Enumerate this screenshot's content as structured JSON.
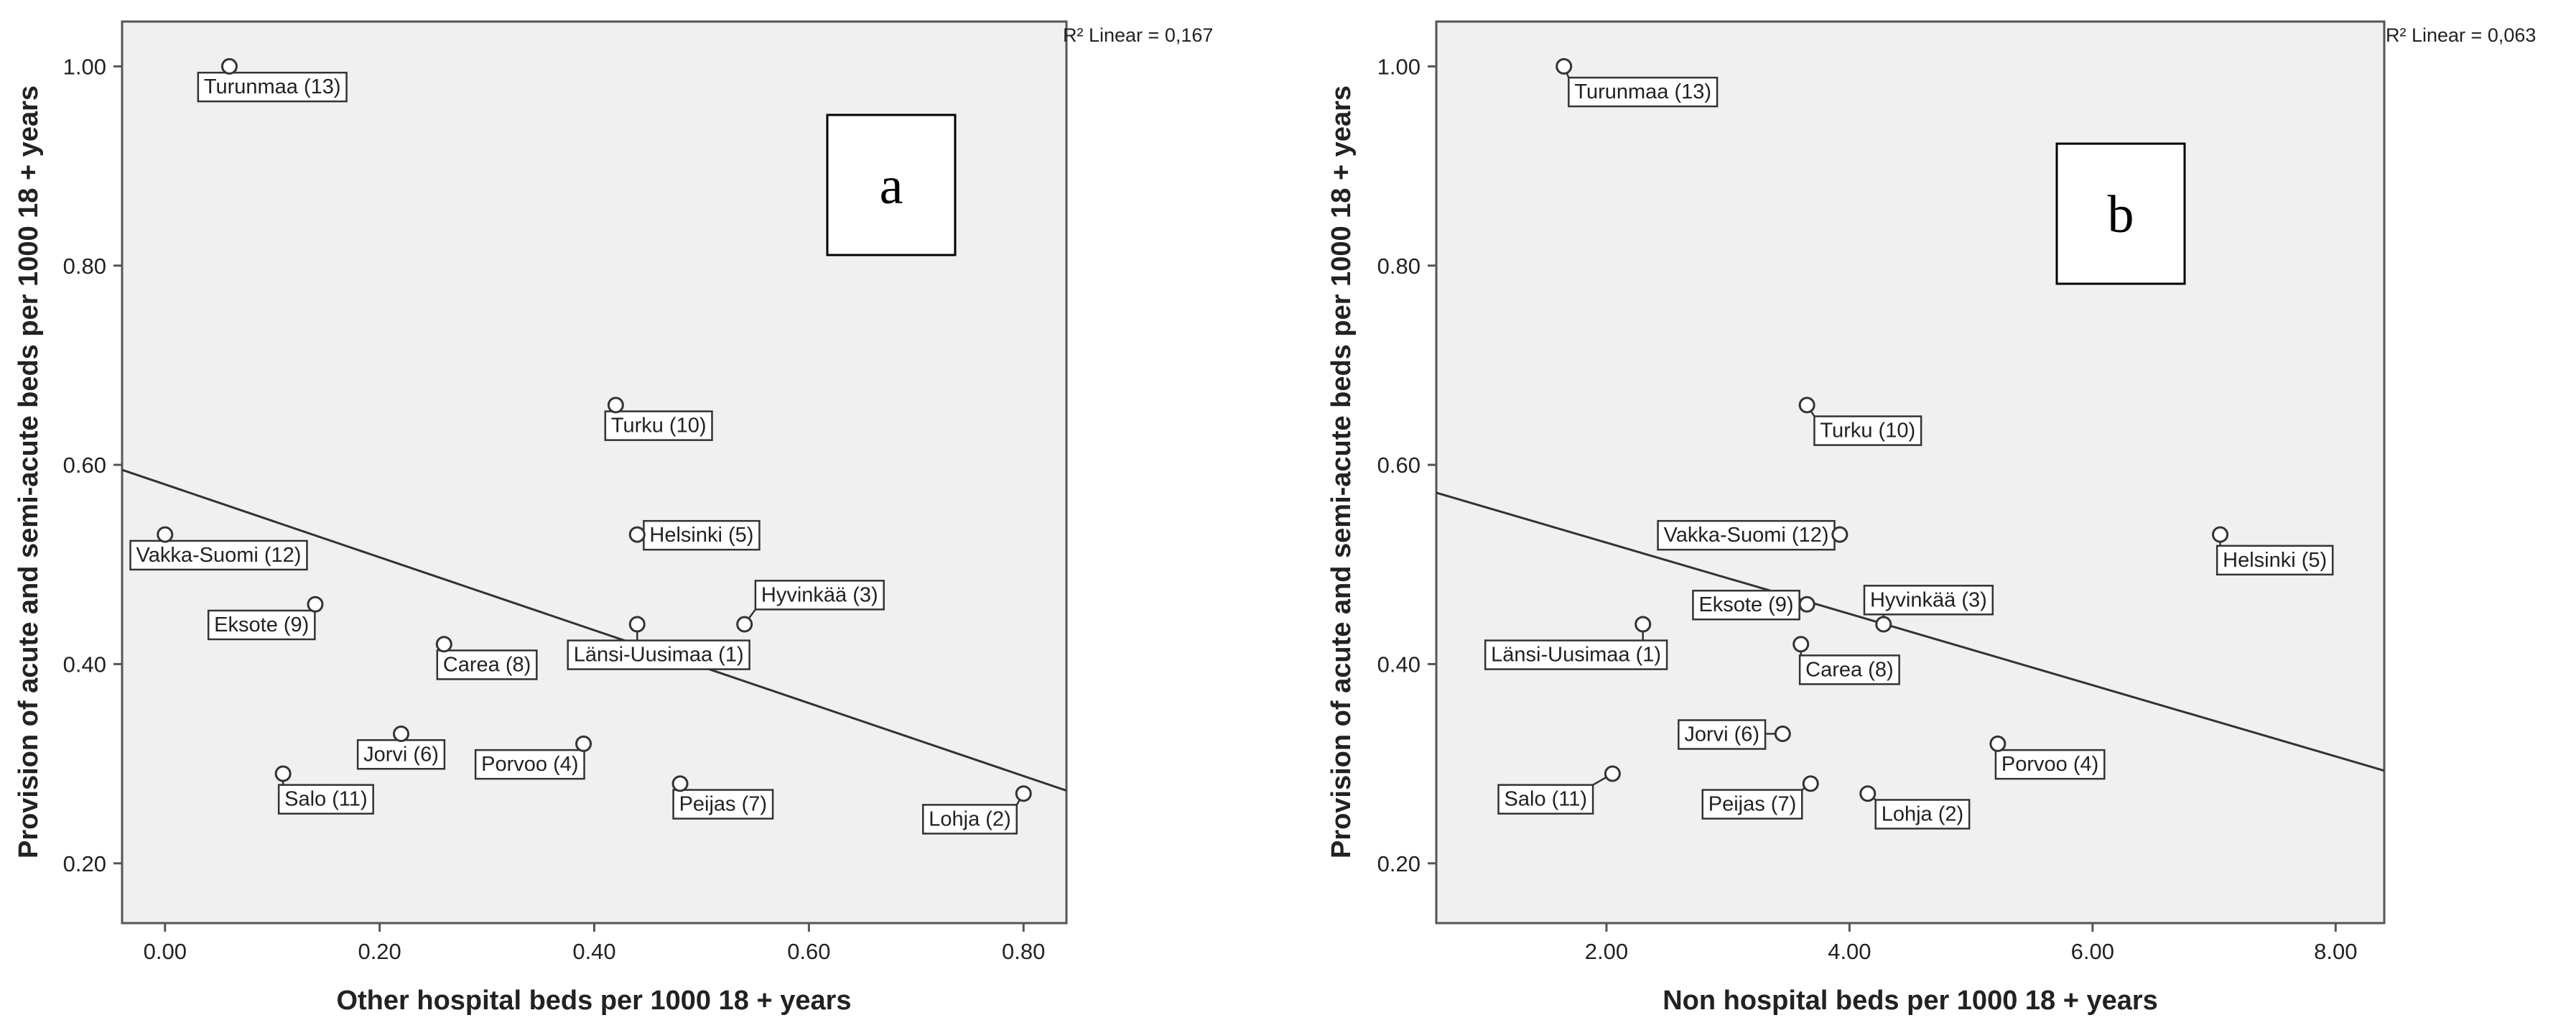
{
  "chart_data": [
    {
      "type": "scatter",
      "panel_label": "a",
      "xlabel": "Other hospital beds per 1000 18 + years",
      "ylabel": "Provision of acute and semi-acute beds per 1000 18 + years",
      "fit_label": "R² Linear = 0,167",
      "xlim": [
        -0.04,
        0.84
      ],
      "ylim": [
        0.14,
        1.045
      ],
      "x_ticks": [
        0.0,
        0.2,
        0.4,
        0.6,
        0.8
      ],
      "x_tick_labels": [
        "0.00",
        "0.20",
        "0.40",
        "0.60",
        "0.80"
      ],
      "y_ticks": [
        0.2,
        0.4,
        0.6,
        0.8,
        1.0
      ],
      "y_tick_labels": [
        "0.20",
        "0.40",
        "0.60",
        "0.80",
        "1.00"
      ],
      "fit_line": {
        "x": [
          -0.04,
          0.84
        ],
        "y": [
          0.595,
          0.273
        ]
      },
      "points": [
        {
          "label": "Turunmaa (13)",
          "x": 0.06,
          "y": 1.0,
          "lx": 0.1,
          "ly": 0.98
        },
        {
          "label": "Turku (10)",
          "x": 0.42,
          "y": 0.66,
          "lx": 0.46,
          "ly": 0.64
        },
        {
          "label": "Helsinki (5)",
          "x": 0.44,
          "y": 0.53,
          "lx": 0.5,
          "ly": 0.53
        },
        {
          "label": "Vakka-Suomi (12)",
          "x": 0.0,
          "y": 0.53,
          "lx": 0.05,
          "ly": 0.51
        },
        {
          "label": "Eksote (9)",
          "x": 0.14,
          "y": 0.46,
          "lx": 0.09,
          "ly": 0.44
        },
        {
          "label": "Hyvinkää (3)",
          "x": 0.54,
          "y": 0.44,
          "lx": 0.61,
          "ly": 0.47
        },
        {
          "label": "Länsi-Uusimaa (1)",
          "x": 0.44,
          "y": 0.44,
          "lx": 0.46,
          "ly": 0.41
        },
        {
          "label": "Carea (8)",
          "x": 0.26,
          "y": 0.42,
          "lx": 0.3,
          "ly": 0.4
        },
        {
          "label": "Jorvi (6)",
          "x": 0.22,
          "y": 0.33,
          "lx": 0.22,
          "ly": 0.31
        },
        {
          "label": "Porvoo (4)",
          "x": 0.39,
          "y": 0.32,
          "lx": 0.34,
          "ly": 0.3
        },
        {
          "label": "Salo (11)",
          "x": 0.11,
          "y": 0.29,
          "lx": 0.15,
          "ly": 0.265
        },
        {
          "label": "Peijas (7)",
          "x": 0.48,
          "y": 0.28,
          "lx": 0.52,
          "ly": 0.26
        },
        {
          "label": "Lohja (2)",
          "x": 0.8,
          "y": 0.27,
          "lx": 0.75,
          "ly": 0.245
        }
      ]
    },
    {
      "type": "scatter",
      "panel_label": "b",
      "xlabel": "Non hospital beds per 1000 18 + years",
      "ylabel": "Provision of acute and semi-acute beds per 1000 18 + years",
      "fit_label": "R² Linear = 0,063",
      "xlim": [
        0.6,
        8.4
      ],
      "ylim": [
        0.14,
        1.045
      ],
      "x_ticks": [
        2.0,
        4.0,
        6.0,
        8.0
      ],
      "x_tick_labels": [
        "2.00",
        "4.00",
        "6.00",
        "8.00"
      ],
      "y_ticks": [
        0.2,
        0.4,
        0.6,
        0.8,
        1.0
      ],
      "y_tick_labels": [
        "0.20",
        "0.40",
        "0.60",
        "0.80",
        "1.00"
      ],
      "fit_line": {
        "x": [
          0.6,
          8.4
        ],
        "y": [
          0.572,
          0.293
        ]
      },
      "points": [
        {
          "label": "Turunmaa (13)",
          "x": 1.65,
          "y": 1.0,
          "lx": 2.3,
          "ly": 0.975
        },
        {
          "label": "Turku (10)",
          "x": 3.65,
          "y": 0.66,
          "lx": 4.15,
          "ly": 0.635
        },
        {
          "label": "Vakka-Suomi (12)",
          "x": 3.92,
          "y": 0.53,
          "lx": 3.15,
          "ly": 0.53
        },
        {
          "label": "Helsinki (5)",
          "x": 7.05,
          "y": 0.53,
          "lx": 7.5,
          "ly": 0.505
        },
        {
          "label": "Eksote (9)",
          "x": 3.65,
          "y": 0.46,
          "lx": 3.15,
          "ly": 0.46
        },
        {
          "label": "Hyvinkää (3)",
          "x": 4.28,
          "y": 0.44,
          "lx": 4.65,
          "ly": 0.465
        },
        {
          "label": "Länsi-Uusimaa (1)",
          "x": 2.3,
          "y": 0.44,
          "lx": 1.75,
          "ly": 0.41
        },
        {
          "label": "Carea (8)",
          "x": 3.6,
          "y": 0.42,
          "lx": 4.0,
          "ly": 0.395
        },
        {
          "label": "Jorvi (6)",
          "x": 3.45,
          "y": 0.33,
          "lx": 2.95,
          "ly": 0.33
        },
        {
          "label": "Porvoo (4)",
          "x": 5.22,
          "y": 0.32,
          "lx": 5.65,
          "ly": 0.3
        },
        {
          "label": "Salo (11)",
          "x": 2.05,
          "y": 0.29,
          "lx": 1.5,
          "ly": 0.265
        },
        {
          "label": "Peijas (7)",
          "x": 3.68,
          "y": 0.28,
          "lx": 3.2,
          "ly": 0.26
        },
        {
          "label": "Lohja (2)",
          "x": 4.15,
          "y": 0.27,
          "lx": 4.6,
          "ly": 0.25
        }
      ]
    }
  ]
}
